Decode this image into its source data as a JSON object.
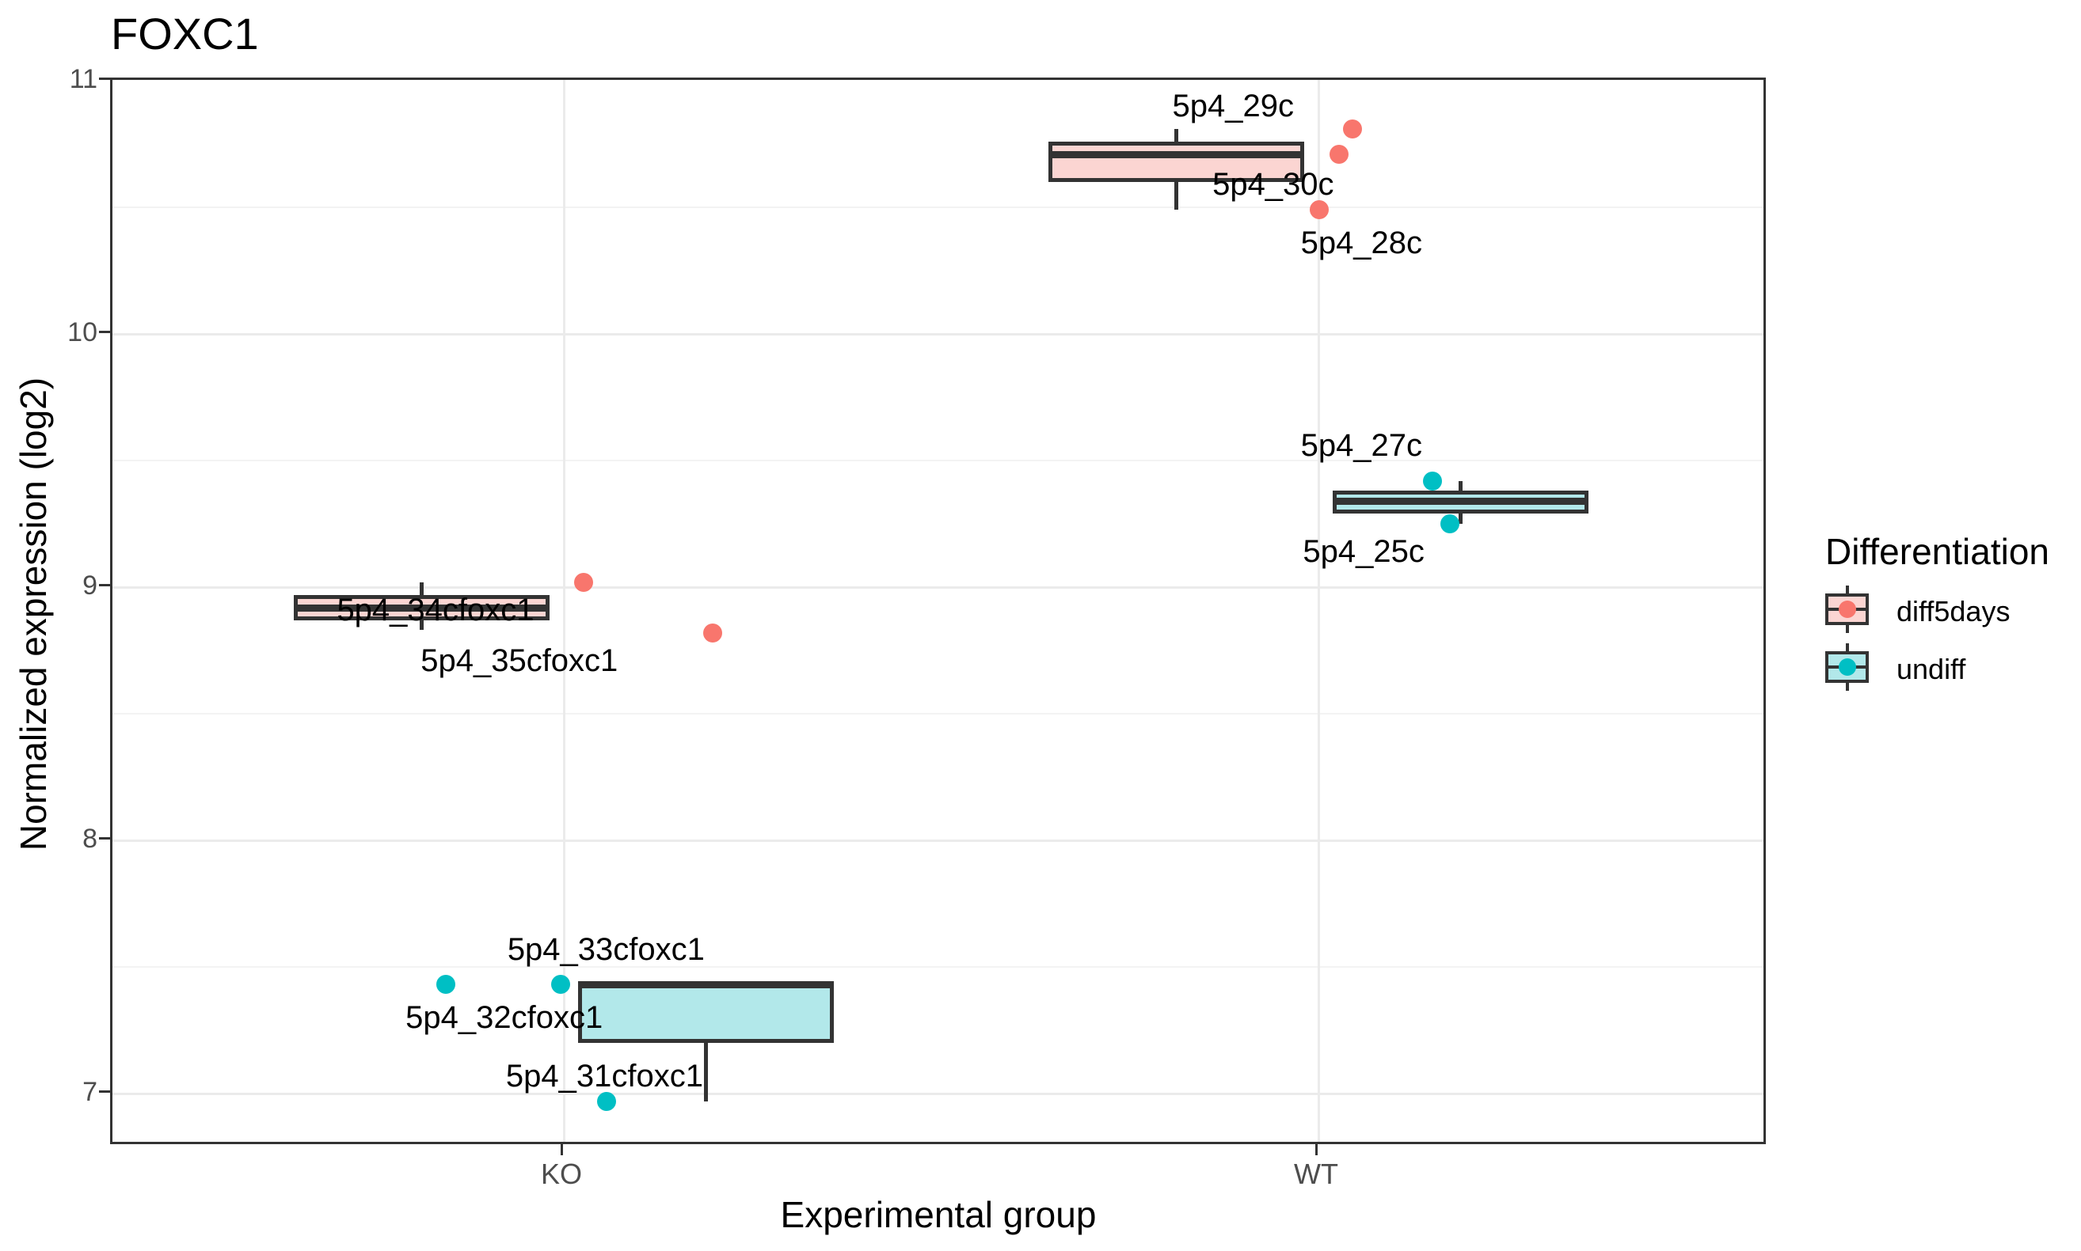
{
  "chart_data": {
    "type": "boxplot",
    "title": "FOXC1",
    "xlabel": "Experimental group",
    "ylabel": "Normalized expression (log2)",
    "categories": [
      "KO",
      "WT"
    ],
    "yticks": [
      7,
      8,
      9,
      10,
      11
    ],
    "ylim": [
      6.79,
      11
    ],
    "grid": "major+minor horizontal, major vertical per category",
    "legend": {
      "title": "Differentiation",
      "position": "right",
      "entries": [
        {
          "label": "diff5days",
          "point_color": "#F8766D",
          "fill_color": "#FBD5D2"
        },
        {
          "label": "undiff",
          "point_color": "#00BFC4",
          "fill_color": "#B2E8EA"
        }
      ]
    },
    "series": [
      {
        "group": "KO",
        "differentiation": "diff5days",
        "box": {
          "min": 8.83,
          "q1": 8.87,
          "median": 8.92,
          "q3": 8.97,
          "max": 9.02
        },
        "points": [
          {
            "label": "5p4_34cfoxc1",
            "value": 9.02,
            "x_offset": 0.026
          },
          {
            "label": "5p4_35cfoxc1",
            "value": 8.82,
            "x_offset": 0.197
          }
        ]
      },
      {
        "group": "KO",
        "differentiation": "undiff",
        "box": {
          "min": 6.97,
          "q1": 7.2,
          "median": 7.43,
          "q3": 7.43,
          "max": 7.43
        },
        "points": [
          {
            "label": "5p4_32cfoxc1",
            "value": 7.43,
            "x_offset": -0.156
          },
          {
            "label": "5p4_33cfoxc1",
            "value": 7.43,
            "x_offset": -0.004
          },
          {
            "label": "5p4_31cfoxc1",
            "value": 6.97,
            "x_offset": 0.057
          }
        ]
      },
      {
        "group": "WT",
        "differentiation": "diff5days",
        "box": {
          "min": 10.49,
          "q1": 10.6,
          "median": 10.71,
          "q3": 10.76,
          "max": 10.81
        },
        "points": [
          {
            "label": "5p4_29c",
            "value": 10.81,
            "x_offset": 0.045
          },
          {
            "label": "5p4_30c",
            "value": 10.71,
            "x_offset": 0.027
          },
          {
            "label": "5p4_28c",
            "value": 10.49,
            "x_offset": 0.001
          }
        ]
      },
      {
        "group": "WT",
        "differentiation": "undiff",
        "box": {
          "min": 9.25,
          "q1": 9.29,
          "median": 9.34,
          "q3": 9.38,
          "max": 9.42
        },
        "points": [
          {
            "label": "5p4_27c",
            "value": 9.42,
            "x_offset": 0.151
          },
          {
            "label": "5p4_25c",
            "value": 9.25,
            "x_offset": 0.174
          }
        ]
      }
    ],
    "annotations": [
      {
        "text": "5p4_29c",
        "x": 1.887,
        "y": 10.9
      },
      {
        "text": "5p4_30c",
        "x": 1.94,
        "y": 10.59
      },
      {
        "text": "5p4_28c",
        "x": 2.057,
        "y": 10.36
      },
      {
        "text": "5p4_27c",
        "x": 2.057,
        "y": 9.56
      },
      {
        "text": "5p4_25c",
        "x": 2.06,
        "y": 9.14
      },
      {
        "text": "5p4_34cfoxc1",
        "x": 0.83,
        "y": 8.91
      },
      {
        "text": "5p4_35cfoxc1",
        "x": 0.941,
        "y": 8.71
      },
      {
        "text": "5p4_33cfoxc1",
        "x": 1.056,
        "y": 7.57
      },
      {
        "text": "5p4_32cfoxc1",
        "x": 0.921,
        "y": 7.3
      },
      {
        "text": "5p4_31cfoxc1",
        "x": 1.054,
        "y": 7.07
      }
    ],
    "colors": {
      "box_border": "#333333",
      "panel_border": "#333333",
      "grid_major": "#EBEBEB",
      "grid_minor": "#F3F3F3",
      "tick_label": "#4D4D4D",
      "label_text": "#000000"
    }
  }
}
